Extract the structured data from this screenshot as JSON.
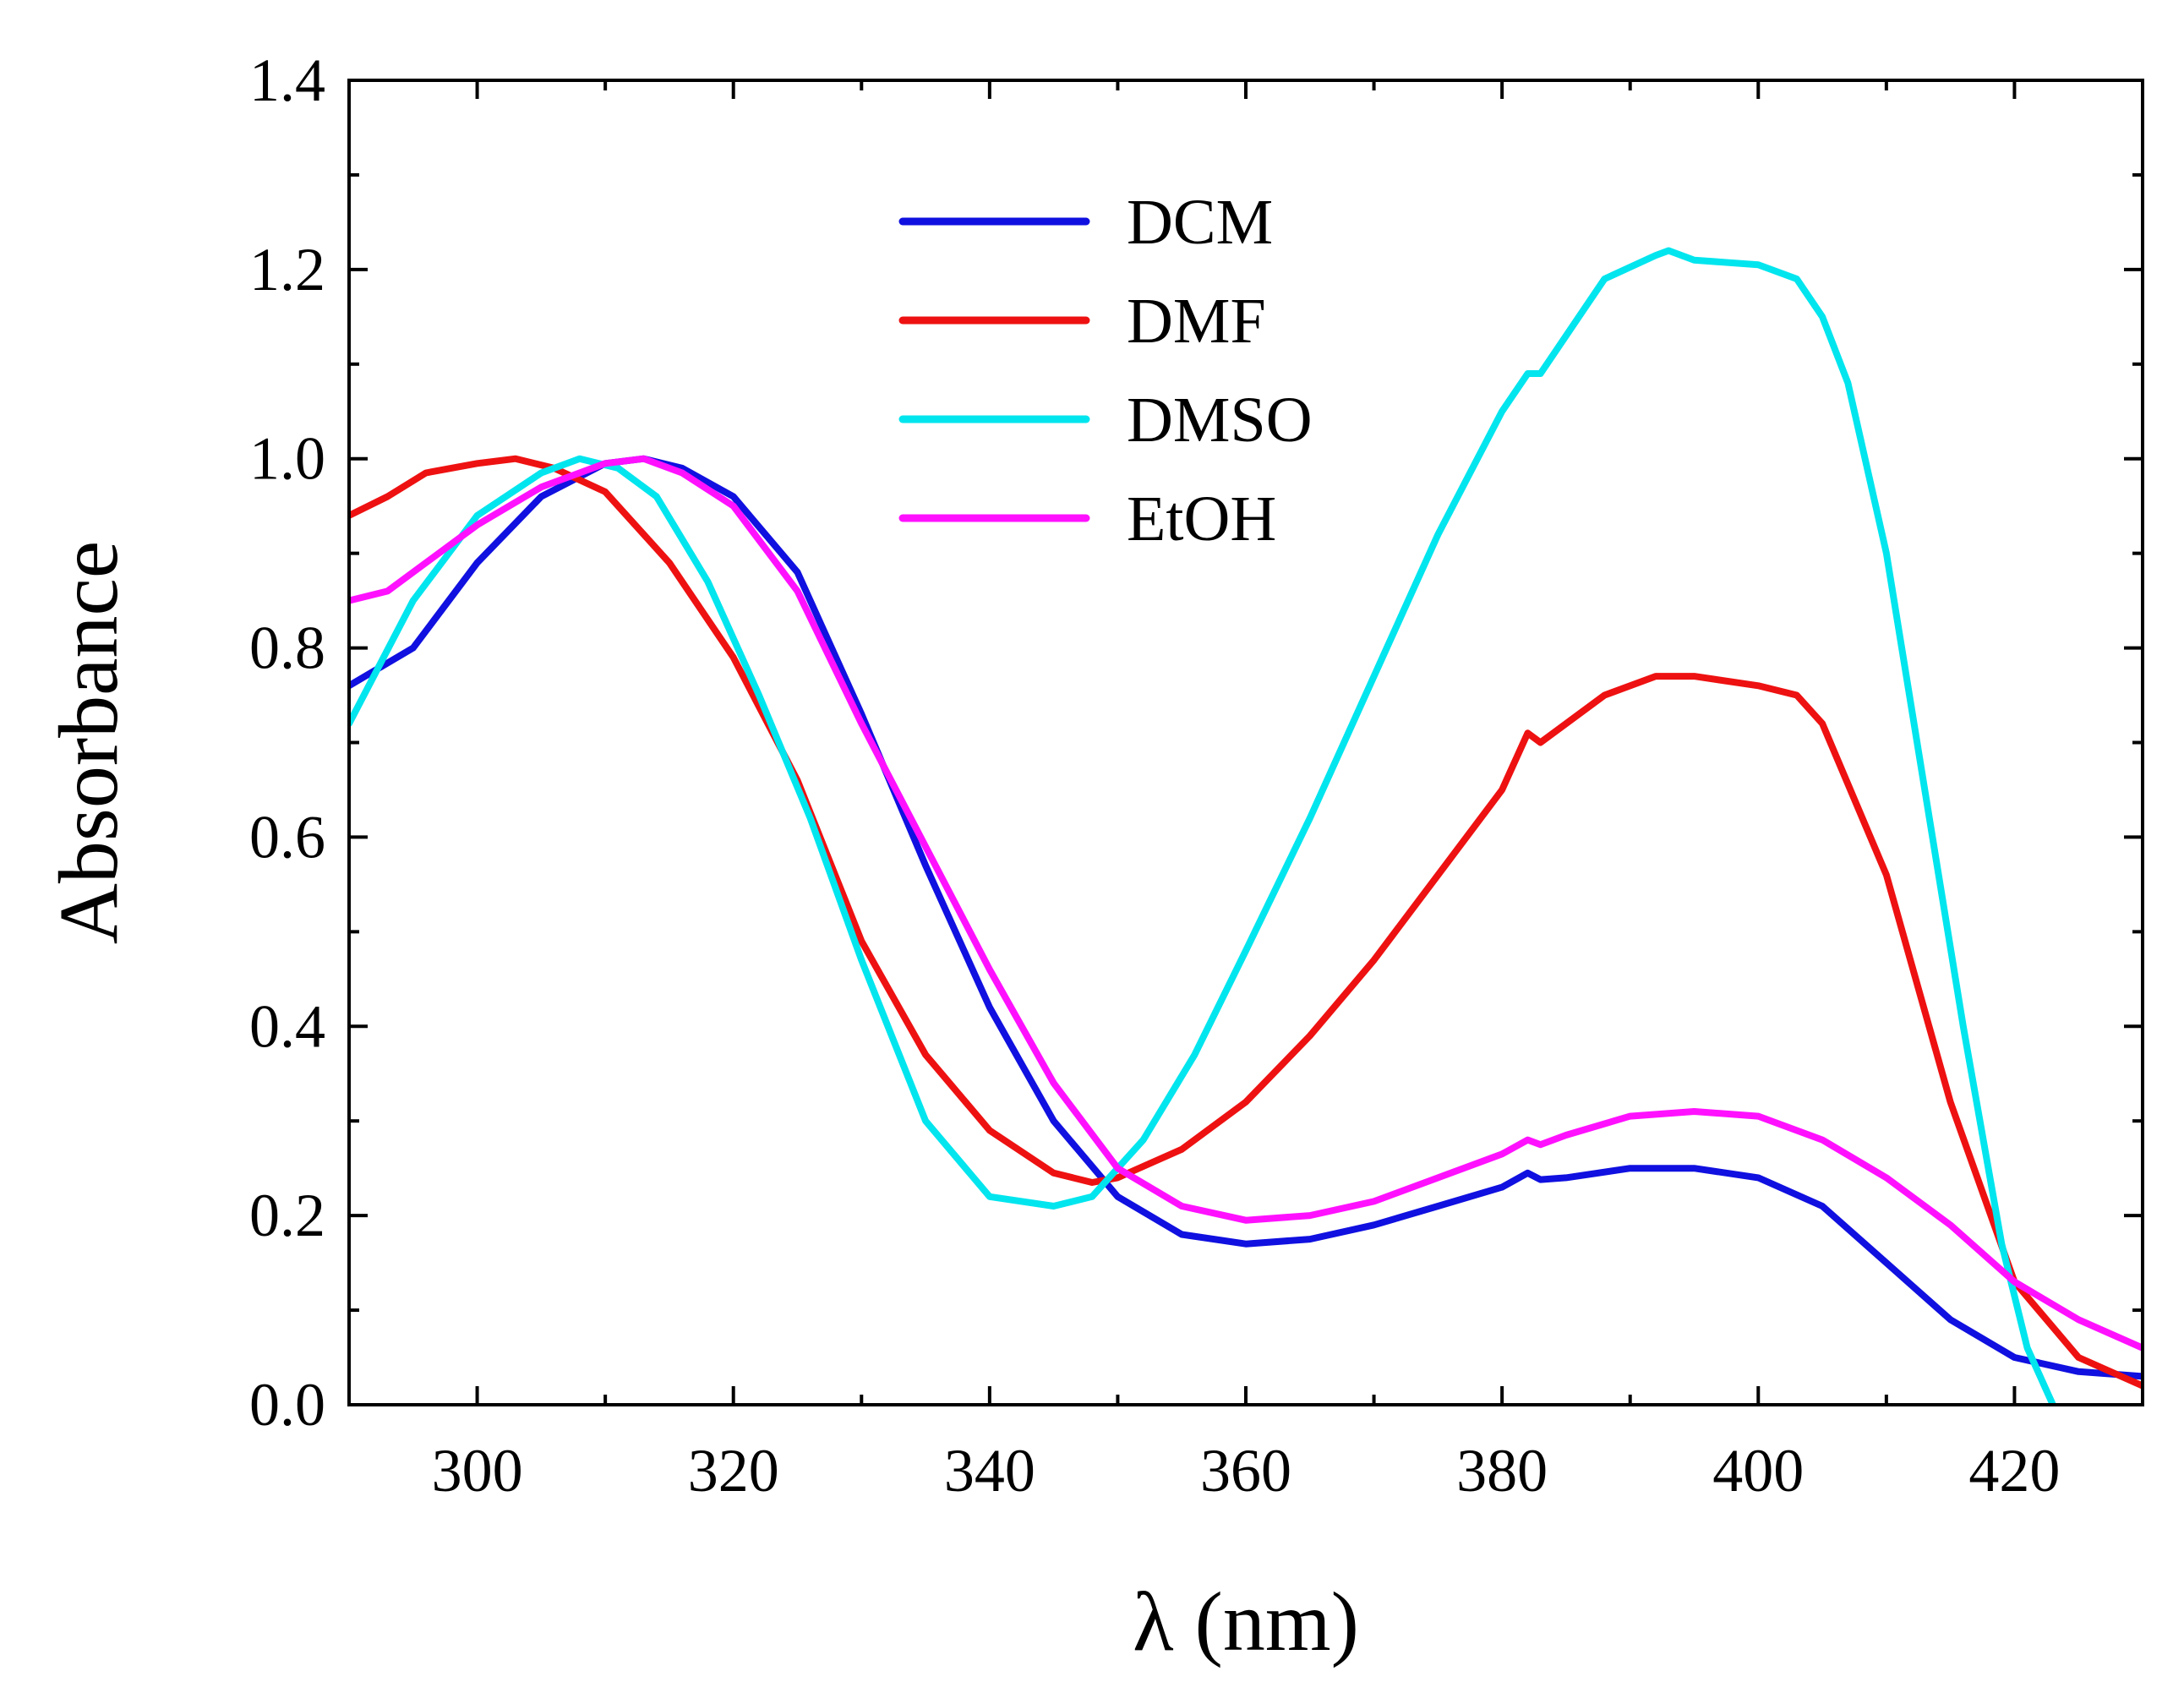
{
  "chart_data": {
    "type": "line",
    "title": "",
    "xlabel": "λ (nm)",
    "ylabel": "Absorbance",
    "xlim": [
      290,
      430
    ],
    "ylim": [
      0.0,
      1.4
    ],
    "xticks": [
      300,
      320,
      340,
      360,
      380,
      400,
      420
    ],
    "xtick_labels": [
      "300",
      "320",
      "340",
      "360",
      "380",
      "400",
      "420"
    ],
    "yticks": [
      0.0,
      0.2,
      0.4,
      0.6,
      0.8,
      1.0,
      1.2,
      1.4
    ],
    "ytick_labels": [
      "0.0",
      "0.2",
      "0.4",
      "0.6",
      "0.8",
      "1.0",
      "1.2",
      "1.4"
    ],
    "grid": false,
    "legend_position": "top-center",
    "series": [
      {
        "name": "DCM",
        "color": "#1010e0",
        "x": [
          290,
          295,
          300,
          305,
          310,
          313,
          316,
          320,
          325,
          330,
          335,
          340,
          345,
          350,
          355,
          360,
          365,
          370,
          375,
          380,
          382,
          383,
          385,
          390,
          395,
          400,
          405,
          410,
          415,
          420,
          425,
          430
        ],
        "y": [
          0.76,
          0.8,
          0.89,
          0.96,
          0.995,
          1.0,
          0.99,
          0.96,
          0.88,
          0.73,
          0.57,
          0.42,
          0.3,
          0.22,
          0.18,
          0.17,
          0.175,
          0.19,
          0.21,
          0.23,
          0.245,
          0.238,
          0.24,
          0.25,
          0.25,
          0.24,
          0.21,
          0.15,
          0.09,
          0.05,
          0.035,
          0.03
        ]
      },
      {
        "name": "DMF",
        "color": "#ee1111",
        "x": [
          290,
          293,
          296,
          300,
          303,
          306,
          310,
          315,
          320,
          325,
          330,
          335,
          340,
          345,
          348,
          350,
          355,
          360,
          365,
          370,
          375,
          380,
          382,
          383,
          385,
          388,
          392,
          395,
          400,
          403,
          405,
          410,
          415,
          420,
          425,
          430
        ],
        "y": [
          0.94,
          0.96,
          0.985,
          0.995,
          1.0,
          0.99,
          0.965,
          0.89,
          0.79,
          0.66,
          0.49,
          0.37,
          0.29,
          0.245,
          0.235,
          0.24,
          0.27,
          0.32,
          0.39,
          0.47,
          0.56,
          0.65,
          0.71,
          0.7,
          0.72,
          0.75,
          0.77,
          0.77,
          0.76,
          0.75,
          0.72,
          0.56,
          0.32,
          0.13,
          0.05,
          0.02
        ]
      },
      {
        "name": "DMSO",
        "color": "#00e5ee",
        "x": [
          290,
          295,
          300,
          305,
          308,
          311,
          314,
          318,
          322,
          326,
          330,
          335,
          340,
          345,
          348,
          352,
          356,
          360,
          365,
          370,
          375,
          380,
          382,
          383,
          385,
          388,
          392,
          393,
          395,
          400,
          403,
          405,
          407,
          410,
          413,
          416,
          419,
          421,
          423
        ],
        "y": [
          0.72,
          0.85,
          0.94,
          0.985,
          1.0,
          0.99,
          0.96,
          0.87,
          0.75,
          0.62,
          0.47,
          0.3,
          0.22,
          0.21,
          0.22,
          0.28,
          0.37,
          0.48,
          0.62,
          0.77,
          0.92,
          1.05,
          1.09,
          1.09,
          1.13,
          1.19,
          1.215,
          1.22,
          1.21,
          1.205,
          1.19,
          1.15,
          1.08,
          0.9,
          0.65,
          0.4,
          0.17,
          0.06,
          0.0
        ]
      },
      {
        "name": "EtOH",
        "color": "#ff11ff",
        "x": [
          290,
          293,
          296,
          300,
          305,
          310,
          313,
          316,
          320,
          325,
          330,
          335,
          340,
          345,
          350,
          355,
          360,
          365,
          370,
          375,
          380,
          382,
          383,
          385,
          390,
          395,
          400,
          405,
          410,
          415,
          420,
          425,
          430
        ],
        "y": [
          0.85,
          0.86,
          0.89,
          0.93,
          0.97,
          0.995,
          1.0,
          0.985,
          0.95,
          0.86,
          0.72,
          0.59,
          0.46,
          0.34,
          0.25,
          0.21,
          0.195,
          0.2,
          0.215,
          0.24,
          0.265,
          0.28,
          0.275,
          0.285,
          0.305,
          0.31,
          0.305,
          0.28,
          0.24,
          0.19,
          0.13,
          0.09,
          0.06
        ]
      }
    ]
  }
}
